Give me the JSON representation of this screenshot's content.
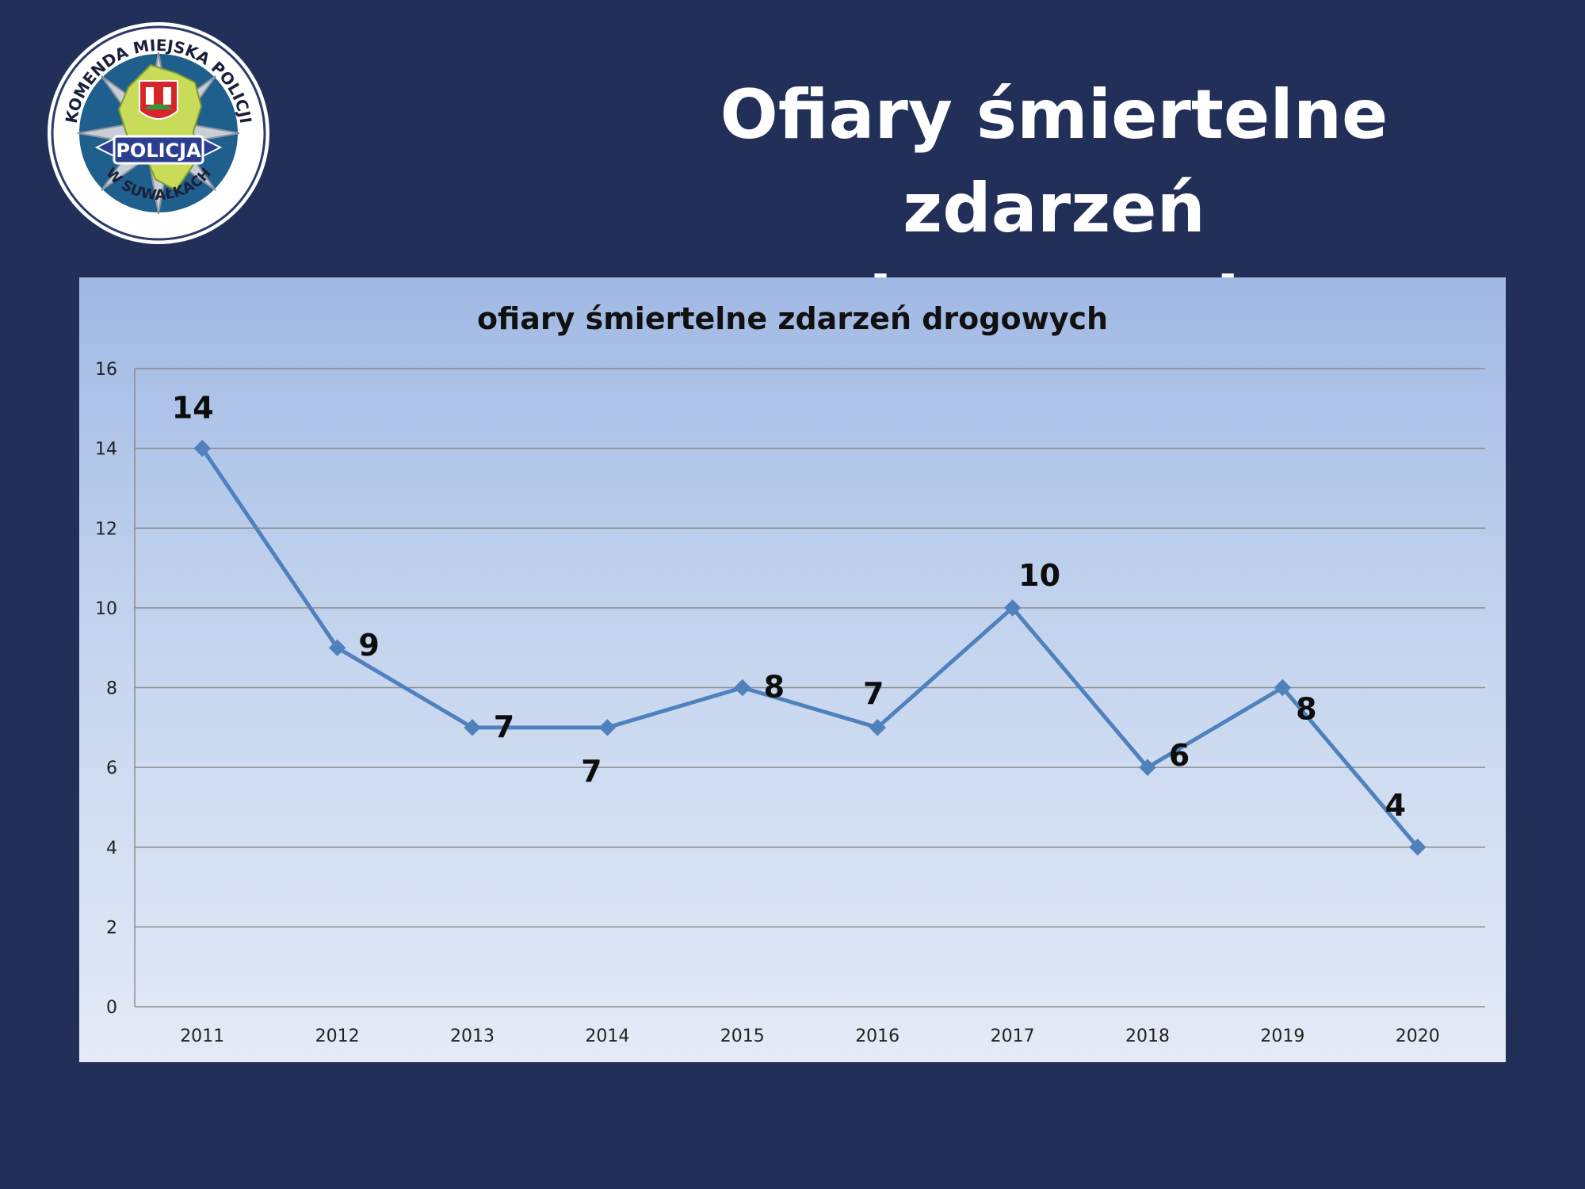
{
  "header": {
    "title_line1": "Ofiary śmiertelne zdarzeń",
    "title_line2": "drogowych"
  },
  "logo": {
    "top_text": "KOMENDA MIEJSKA POLICJI",
    "center_text": "POLICJA",
    "bottom_text": "W SUWAŁKACH"
  },
  "colors": {
    "background": "#223059",
    "series_line": "#4f81bd",
    "logo_ring": "#1f5f8e"
  },
  "chart_data": {
    "type": "line",
    "title": "ofiary śmiertelne zdarzeń drogowych",
    "xlabel": "",
    "ylabel": "",
    "categories": [
      "2011",
      "2012",
      "2013",
      "2014",
      "2015",
      "2016",
      "2017",
      "2018",
      "2019",
      "2020"
    ],
    "series": [
      {
        "values": [
          14,
          9,
          7,
          7,
          8,
          7,
          10,
          6,
          8,
          4
        ]
      }
    ],
    "data_labels": [
      "14",
      "9",
      "7",
      "7",
      "8",
      "7",
      "10",
      "6",
      "8",
      "4"
    ],
    "ylim": [
      0,
      16
    ],
    "yticks": [
      0,
      2,
      4,
      6,
      8,
      10,
      12,
      14,
      16
    ],
    "grid": true,
    "legend": "none"
  }
}
